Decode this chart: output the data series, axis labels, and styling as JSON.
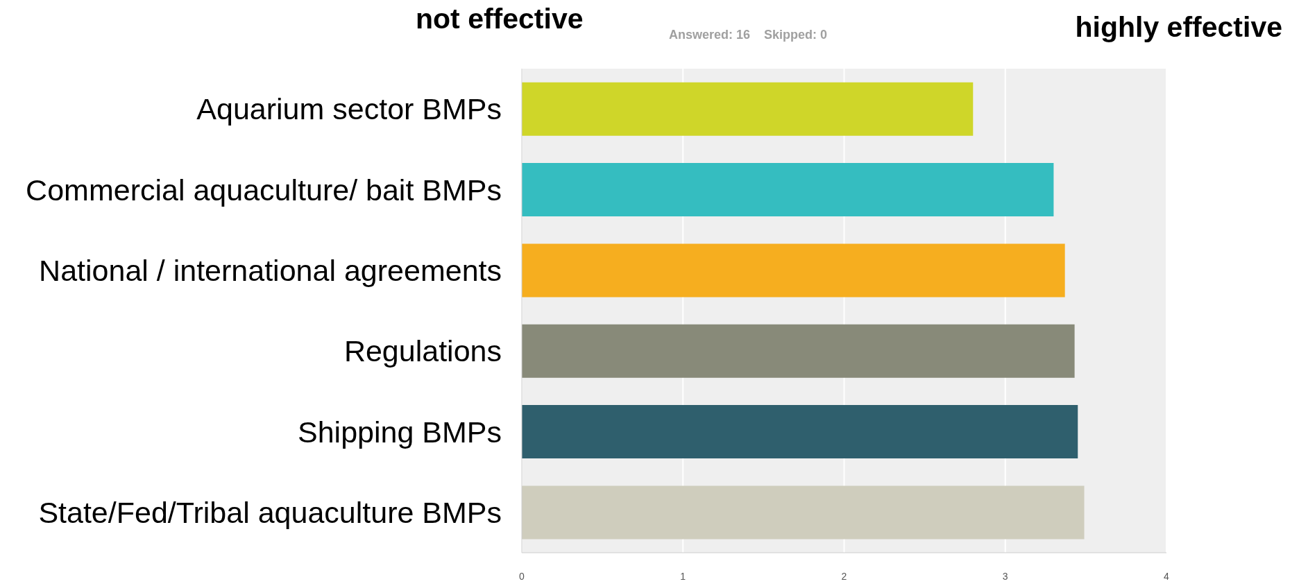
{
  "chart_data": {
    "type": "bar",
    "orientation": "horizontal",
    "subtitle": "Answered: 16    Skipped: 0",
    "annotations": [
      "not effective",
      "highly effective"
    ],
    "categories": [
      "Aquarium sector BMPs",
      "Commercial aquaculture/ bait BMPs",
      "National / international agreements",
      "Regulations",
      "Shipping BMPs",
      "State/Fed/Tribal aquaculture BMPs"
    ],
    "values": [
      2.8,
      3.3,
      3.37,
      3.43,
      3.45,
      3.49
    ],
    "colors": [
      "#cfd629",
      "#35bdc0",
      "#f6ae1f",
      "#888a79",
      "#2f5f6d",
      "#cfcdbd"
    ],
    "xlim": [
      0,
      4
    ],
    "xticks": [
      0,
      1,
      2,
      3,
      4
    ],
    "grid": "x"
  }
}
